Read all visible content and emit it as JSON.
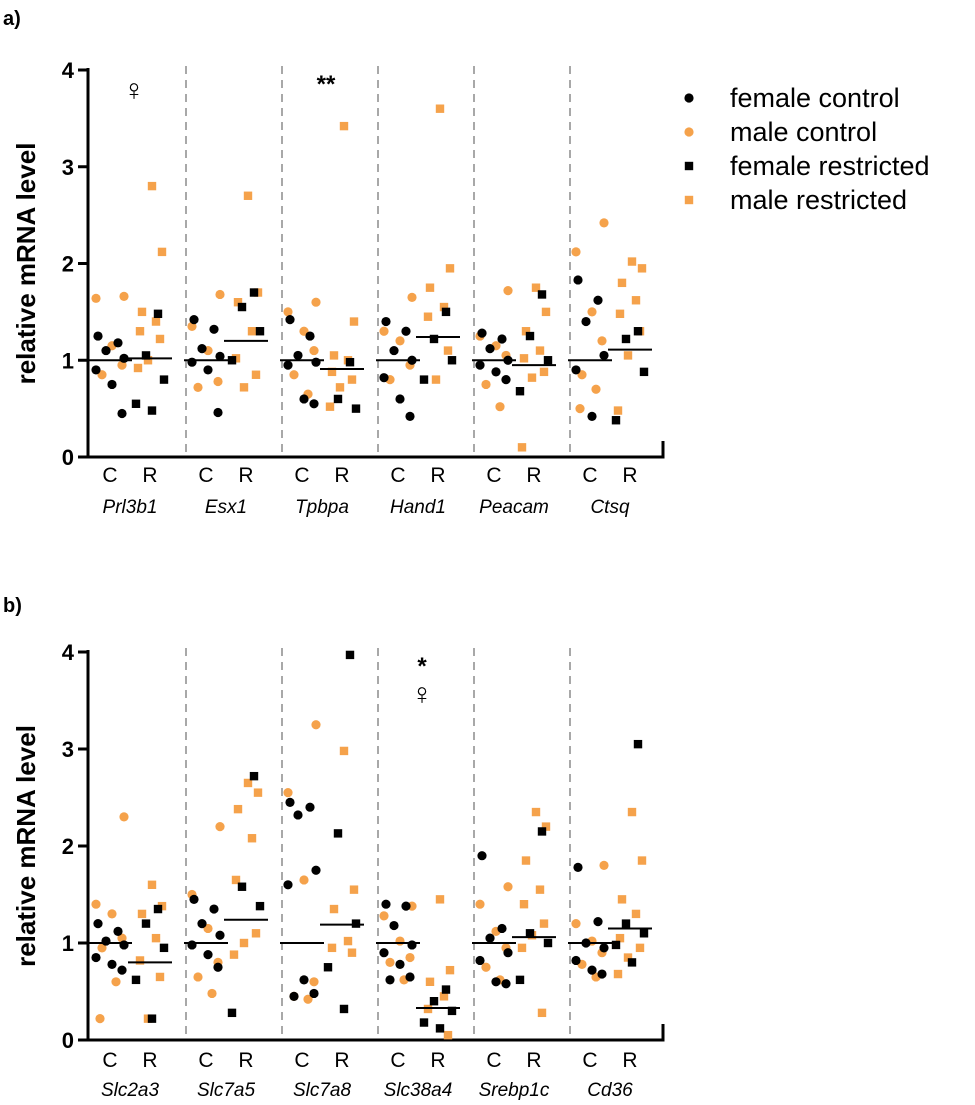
{
  "colors": {
    "female": "#000000",
    "male": "#f5a24b"
  },
  "legend": [
    {
      "label": "female control",
      "marker": "circle",
      "color": "#000000"
    },
    {
      "label": "male control",
      "marker": "circle",
      "color": "#f5a24b"
    },
    {
      "label": "female restricted",
      "marker": "square",
      "color": "#000000"
    },
    {
      "label": "male restricted",
      "marker": "square",
      "color": "#f5a24b"
    }
  ],
  "chart_data": [
    {
      "type": "scatter",
      "panel_label": "a)",
      "ylabel": "relative mRNA level",
      "ylim": [
        0,
        4
      ],
      "yticks": [
        "0",
        "1",
        "2",
        "3",
        "4"
      ],
      "groups": [
        {
          "gene": "Prl3b1",
          "annotation": "♀",
          "control": {
            "label": "C",
            "mean": 1.0,
            "female": [
              1.25,
              1.18,
              1.1,
              1.02,
              0.9,
              0.75,
              0.45
            ],
            "male": [
              1.66,
              1.64,
              1.15,
              0.95,
              0.85
            ]
          },
          "restricted": {
            "label": "R",
            "mean": 1.02,
            "female": [
              1.48,
              1.05,
              0.8,
              0.55,
              0.48
            ],
            "male": [
              2.8,
              2.12,
              1.5,
              1.4,
              1.3,
              1.22,
              1.0,
              0.92
            ]
          }
        },
        {
          "gene": "Esx1",
          "annotation": "",
          "control": {
            "label": "C",
            "mean": 1.0,
            "female": [
              1.42,
              1.32,
              1.12,
              1.04,
              0.98,
              0.9,
              0.46
            ],
            "male": [
              1.68,
              1.35,
              1.1,
              0.78,
              0.72
            ]
          },
          "restricted": {
            "label": "R",
            "mean": 1.2,
            "female": [
              1.7,
              1.55,
              1.3,
              1.0
            ],
            "male": [
              2.7,
              1.7,
              1.6,
              1.3,
              1.02,
              0.85,
              0.72
            ]
          }
        },
        {
          "gene": "Tpbpa",
          "annotation": "**",
          "control": {
            "label": "C",
            "mean": 1.0,
            "female": [
              1.42,
              1.25,
              1.05,
              0.98,
              0.95,
              0.6,
              0.55
            ],
            "male": [
              1.6,
              1.5,
              1.3,
              1.1,
              0.85,
              0.65
            ]
          },
          "restricted": {
            "label": "R",
            "mean": 0.91,
            "female": [
              0.98,
              0.6,
              0.5
            ],
            "male": [
              3.42,
              1.4,
              1.05,
              1.0,
              0.88,
              0.8,
              0.72,
              0.52
            ]
          }
        },
        {
          "gene": "Hand1",
          "annotation": "",
          "control": {
            "label": "C",
            "mean": 1.0,
            "female": [
              1.4,
              1.3,
              1.1,
              1.0,
              0.82,
              0.6,
              0.42
            ],
            "male": [
              1.65,
              1.3,
              1.2,
              0.95,
              0.8
            ]
          },
          "restricted": {
            "label": "R",
            "mean": 1.24,
            "female": [
              1.5,
              1.22,
              1.0,
              0.8
            ],
            "male": [
              3.6,
              1.95,
              1.75,
              1.55,
              1.45,
              1.1,
              0.8
            ]
          }
        },
        {
          "gene": "Peacam",
          "annotation": "",
          "control": {
            "label": "C",
            "mean": 1.0,
            "female": [
              1.28,
              1.22,
              1.12,
              1.0,
              0.95,
              0.88,
              0.8
            ],
            "male": [
              1.72,
              1.25,
              1.15,
              1.05,
              0.75,
              0.52
            ]
          },
          "restricted": {
            "label": "R",
            "mean": 0.95,
            "female": [
              1.68,
              1.25,
              1.0,
              0.68
            ],
            "male": [
              1.75,
              1.5,
              1.3,
              1.1,
              1.02,
              0.88,
              0.82,
              0.1
            ]
          }
        },
        {
          "gene": "Ctsq",
          "annotation": "",
          "control": {
            "label": "C",
            "mean": 1.0,
            "female": [
              1.83,
              1.62,
              1.4,
              1.05,
              0.9,
              0.42
            ],
            "male": [
              2.42,
              2.12,
              1.5,
              1.2,
              0.85,
              0.7,
              0.5
            ]
          },
          "restricted": {
            "label": "R",
            "mean": 1.11,
            "female": [
              1.3,
              1.22,
              0.88,
              0.38
            ],
            "male": [
              2.02,
              1.95,
              1.8,
              1.62,
              1.48,
              1.3,
              1.05,
              0.48
            ]
          }
        }
      ]
    },
    {
      "type": "scatter",
      "panel_label": "b)",
      "ylabel": "relative mRNA level",
      "ylim": [
        0,
        4
      ],
      "yticks": [
        "0",
        "1",
        "2",
        "3",
        "4"
      ],
      "groups": [
        {
          "gene": "Slc2a3",
          "annotation": "",
          "control": {
            "label": "C",
            "mean": 1.0,
            "female": [
              1.2,
              1.12,
              1.02,
              0.98,
              0.85,
              0.78,
              0.72
            ],
            "male": [
              2.3,
              1.4,
              1.3,
              1.05,
              0.95,
              0.6,
              0.22
            ]
          },
          "restricted": {
            "label": "R",
            "mean": 0.8,
            "female": [
              1.35,
              1.2,
              0.95,
              0.62,
              0.22
            ],
            "male": [
              1.6,
              1.38,
              1.3,
              1.05,
              0.82,
              0.65,
              0.22
            ]
          }
        },
        {
          "gene": "Slc7a5",
          "annotation": "",
          "control": {
            "label": "C",
            "mean": 1.0,
            "female": [
              1.45,
              1.35,
              1.2,
              1.08,
              0.98,
              0.88,
              0.75
            ],
            "male": [
              2.2,
              1.5,
              1.15,
              0.8,
              0.65,
              0.48
            ]
          },
          "restricted": {
            "label": "R",
            "mean": 1.24,
            "female": [
              2.72,
              1.58,
              1.38,
              0.28
            ],
            "male": [
              2.65,
              2.55,
              2.38,
              2.08,
              1.65,
              1.1,
              1.0,
              0.88
            ]
          }
        },
        {
          "gene": "Slc7a8",
          "annotation": "",
          "control": {
            "label": "C",
            "mean": 1.0,
            "female": [
              2.45,
              2.4,
              2.32,
              1.75,
              1.6,
              0.62,
              0.48,
              0.45
            ],
            "male": [
              3.25,
              2.55,
              1.65,
              0.6,
              0.45,
              0.42
            ]
          },
          "restricted": {
            "label": "R",
            "mean": 1.19,
            "female": [
              3.97,
              2.13,
              1.2,
              0.75,
              0.32
            ],
            "male": [
              2.98,
              1.55,
              1.35,
              1.02,
              0.95,
              0.9
            ]
          }
        },
        {
          "gene": "Slc38a4",
          "annotation": "*",
          "annotation2": "♀",
          "control": {
            "label": "C",
            "mean": 1.0,
            "female": [
              1.4,
              1.38,
              1.18,
              0.98,
              0.9,
              0.78,
              0.65,
              0.62
            ],
            "male": [
              1.38,
              1.28,
              1.02,
              0.85,
              0.8,
              0.62
            ]
          },
          "restricted": {
            "label": "R",
            "mean": 0.33,
            "female": [
              0.52,
              0.4,
              0.3,
              0.18,
              0.12
            ],
            "male": [
              1.45,
              0.72,
              0.6,
              0.45,
              0.32,
              0.05
            ]
          }
        },
        {
          "gene": "Srebp1c",
          "annotation": "",
          "control": {
            "label": "C",
            "mean": 1.0,
            "female": [
              1.9,
              1.15,
              1.05,
              0.9,
              0.82,
              0.6,
              0.58
            ],
            "male": [
              1.58,
              1.4,
              1.12,
              0.95,
              0.75,
              0.62
            ]
          },
          "restricted": {
            "label": "R",
            "mean": 1.06,
            "female": [
              2.15,
              1.1,
              1.0,
              0.62
            ],
            "male": [
              2.35,
              2.2,
              1.85,
              1.55,
              1.4,
              1.2,
              1.08,
              0.95,
              0.28
            ]
          }
        },
        {
          "gene": "Cd36",
          "annotation": "",
          "control": {
            "label": "C",
            "mean": 1.0,
            "female": [
              1.78,
              1.22,
              1.0,
              0.95,
              0.82,
              0.72,
              0.68
            ],
            "male": [
              1.8,
              1.2,
              1.02,
              0.9,
              0.78,
              0.65
            ]
          },
          "restricted": {
            "label": "R",
            "mean": 1.15,
            "female": [
              3.05,
              1.2,
              1.1,
              0.98,
              0.8
            ],
            "male": [
              2.35,
              1.85,
              1.45,
              1.3,
              1.05,
              0.95,
              0.85,
              0.68
            ]
          }
        }
      ]
    }
  ]
}
